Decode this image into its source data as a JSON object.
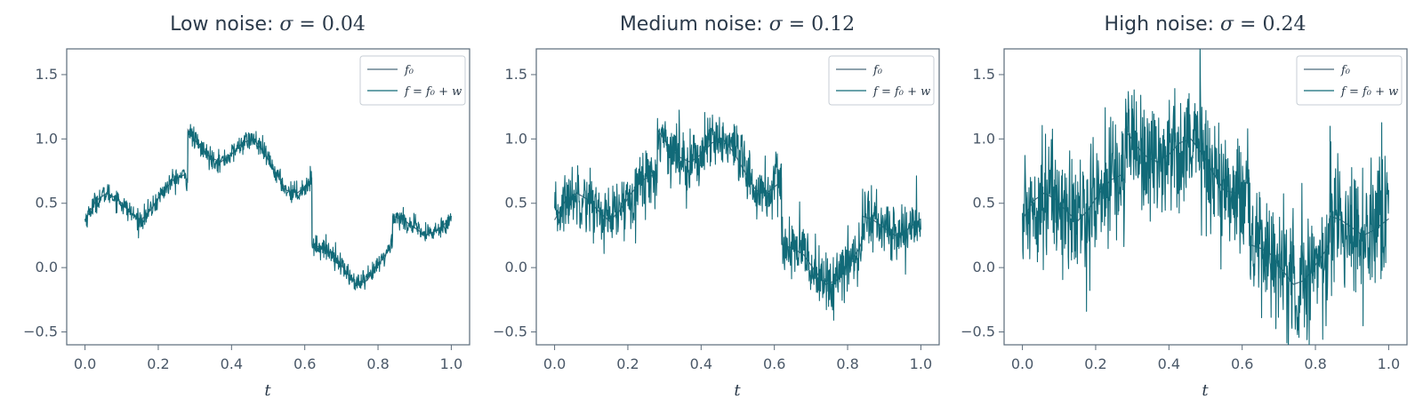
{
  "chart_data": [
    {
      "type": "line",
      "title": "Low noise: σ = 0.04",
      "title_prefix": "Low noise: ",
      "sigma_symbol": "σ",
      "sigma_value": "0.04",
      "sigma": 0.04,
      "xlabel": "t",
      "ylabel": "",
      "xlim": [
        -0.05,
        1.05
      ],
      "ylim": [
        -0.6,
        1.7
      ],
      "xticks": [
        0.0,
        0.2,
        0.4,
        0.6,
        0.8,
        1.0
      ],
      "xtick_labels": [
        "0.0",
        "0.2",
        "0.4",
        "0.6",
        "0.8",
        "1.0"
      ],
      "yticks": [
        -0.5,
        0.0,
        0.5,
        1.0,
        1.5
      ],
      "ytick_labels": [
        "−0.5",
        "0.0",
        "0.5",
        "1.0",
        "1.5"
      ],
      "legend_position": "top-right",
      "series": [
        {
          "name": "f0",
          "label": "f₀",
          "color": "#4a6b7c"
        },
        {
          "name": "f",
          "label": "f = f₀ + w",
          "color": "#116a78"
        }
      ]
    },
    {
      "type": "line",
      "title": "Medium noise: σ = 0.12",
      "title_prefix": "Medium noise: ",
      "sigma_symbol": "σ",
      "sigma_value": "0.12",
      "sigma": 0.12,
      "xlabel": "t",
      "ylabel": "",
      "xlim": [
        -0.05,
        1.05
      ],
      "ylim": [
        -0.6,
        1.7
      ],
      "xticks": [
        0.0,
        0.2,
        0.4,
        0.6,
        0.8,
        1.0
      ],
      "xtick_labels": [
        "0.0",
        "0.2",
        "0.4",
        "0.6",
        "0.8",
        "1.0"
      ],
      "yticks": [
        -0.5,
        0.0,
        0.5,
        1.0,
        1.5
      ],
      "ytick_labels": [
        "−0.5",
        "0.0",
        "0.5",
        "1.0",
        "1.5"
      ],
      "legend_position": "top-right",
      "series": [
        {
          "name": "f0",
          "label": "f₀",
          "color": "#4a6b7c"
        },
        {
          "name": "f",
          "label": "f = f₀ + w",
          "color": "#116a78"
        }
      ]
    },
    {
      "type": "line",
      "title": "High noise: σ = 0.24",
      "title_prefix": "High noise: ",
      "sigma_symbol": "σ",
      "sigma_value": "0.24",
      "sigma": 0.24,
      "xlabel": "t",
      "ylabel": "",
      "xlim": [
        -0.05,
        1.05
      ],
      "ylim": [
        -0.6,
        1.7
      ],
      "xticks": [
        0.0,
        0.2,
        0.4,
        0.6,
        0.8,
        1.0
      ],
      "xtick_labels": [
        "0.0",
        "0.2",
        "0.4",
        "0.6",
        "0.8",
        "1.0"
      ],
      "yticks": [
        -0.5,
        0.0,
        0.5,
        1.0,
        1.5
      ],
      "ytick_labels": [
        "−0.5",
        "0.0",
        "0.5",
        "1.0",
        "1.5"
      ],
      "legend_position": "top-right",
      "series": [
        {
          "name": "f0",
          "label": "f₀",
          "color": "#4a6b7c"
        },
        {
          "name": "f",
          "label": "f = f₀ + w",
          "color": "#116a78"
        }
      ]
    }
  ],
  "base_signal": {
    "t": [
      0.0,
      0.03,
      0.06,
      0.09,
      0.12,
      0.15,
      0.18,
      0.21,
      0.24,
      0.27,
      0.28,
      0.281,
      0.31,
      0.34,
      0.37,
      0.4,
      0.43,
      0.46,
      0.49,
      0.52,
      0.55,
      0.58,
      0.61,
      0.619,
      0.62,
      0.65,
      0.68,
      0.71,
      0.74,
      0.77,
      0.8,
      0.83,
      0.839,
      0.84,
      0.87,
      0.9,
      0.93,
      0.96,
      1.0
    ],
    "f0": [
      0.37,
      0.52,
      0.58,
      0.53,
      0.44,
      0.36,
      0.45,
      0.58,
      0.68,
      0.72,
      0.67,
      1.07,
      0.95,
      0.86,
      0.82,
      0.88,
      0.97,
      1.0,
      0.89,
      0.74,
      0.6,
      0.58,
      0.65,
      0.7,
      0.18,
      0.15,
      0.1,
      -0.02,
      -0.13,
      -0.1,
      0.02,
      0.14,
      0.2,
      0.4,
      0.37,
      0.31,
      0.25,
      0.29,
      0.38
    ]
  }
}
